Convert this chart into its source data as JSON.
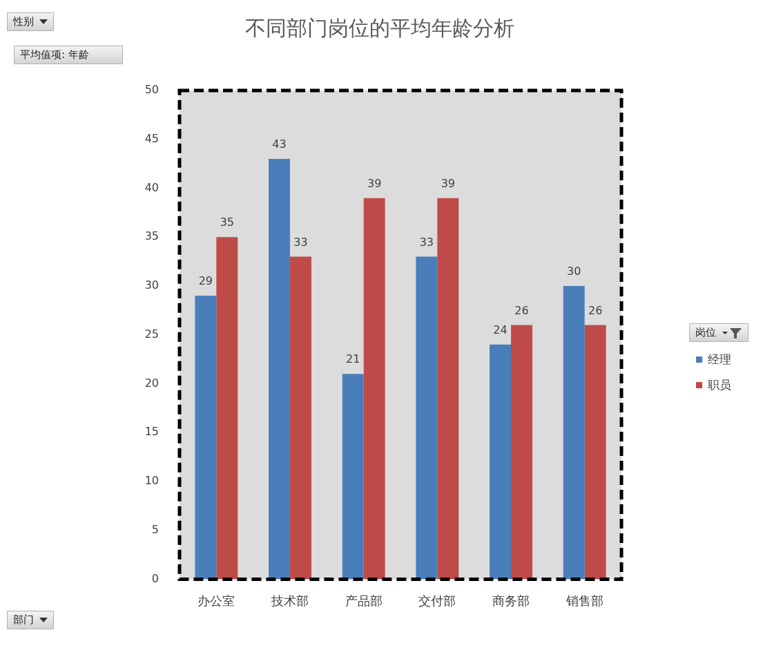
{
  "chart_data": {
    "type": "bar",
    "title": "不同部门岗位的平均年龄分析",
    "categories": [
      "办公室",
      "技术部",
      "产品部",
      "交付部",
      "商务部",
      "销售部"
    ],
    "series": [
      {
        "name": "经理",
        "color": "#4a7ebb",
        "values": [
          29,
          43,
          21,
          33,
          24,
          30
        ]
      },
      {
        "name": "职员",
        "color": "#be4b48",
        "values": [
          35,
          33,
          39,
          39,
          26,
          26
        ]
      }
    ],
    "ylim": [
      0,
      50
    ],
    "yticks": [
      0,
      5,
      10,
      15,
      20,
      25,
      30,
      35,
      40,
      45,
      50
    ],
    "grid": false,
    "legend": "right",
    "legend_title": "岗位",
    "data_labels": true,
    "annotations": [
      "性别",
      "平均值项: 年龄",
      "部门"
    ]
  }
}
